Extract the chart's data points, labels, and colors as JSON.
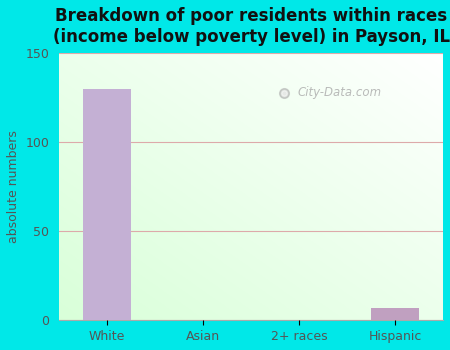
{
  "title": "Breakdown of poor residents within races\n(income below poverty level) in Payson, IL",
  "categories": [
    "White",
    "Asian",
    "2+ races",
    "Hispanic"
  ],
  "values": [
    130,
    0,
    0,
    7
  ],
  "bar_color_white": "#c4b0d4",
  "bar_color_hispanic": "#c0a0c0",
  "ylabel": "absolute numbers",
  "ylim": [
    0,
    150
  ],
  "yticks": [
    0,
    50,
    100,
    150
  ],
  "background_color": "#00e8e8",
  "grid_color": "#ddaaaa",
  "grid_linewidth": 0.8,
  "title_fontsize": 12,
  "axis_label_fontsize": 9,
  "tick_fontsize": 9,
  "watermark": "City-Data.com"
}
